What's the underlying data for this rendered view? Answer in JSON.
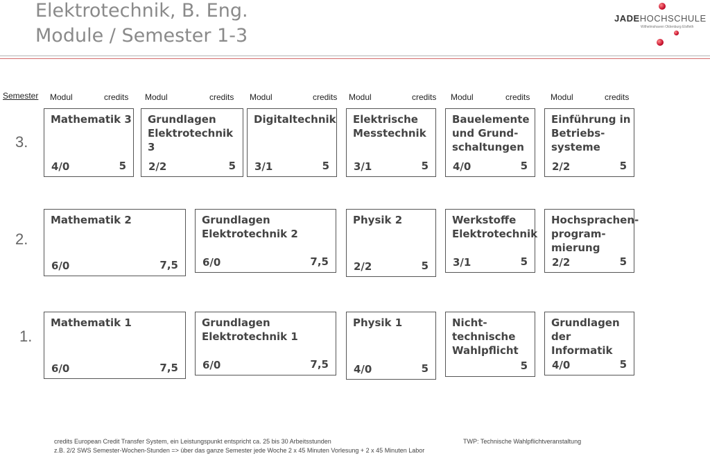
{
  "title_line1": "Elektrotechnik, B. Eng.",
  "title_line2": "Module / Semester 1-3",
  "logo": {
    "jade": "JADE",
    "hochschule": "HOCHSCHULE",
    "sub": "Wilhelmshaven Oldenburg Elsfleth"
  },
  "semester_header": "Semester",
  "col_headers": {
    "modul": "Modul",
    "credits": "credits"
  },
  "semesters": [
    {
      "label": "3.",
      "modules": [
        {
          "name": "Mathematik 3",
          "sws": "4/0",
          "credits": "5"
        },
        {
          "name": "Grundlagen\nElektrotechnik 3",
          "sws": "2/2",
          "credits": "5"
        },
        {
          "name": "Digitaltechnik",
          "sws": "3/1",
          "credits": "5"
        },
        {
          "name": "Elektrische\nMesstechnik",
          "sws": "3/1",
          "credits": "5"
        },
        {
          "name": "Bauelemente\nund Grund-\nschaltungen",
          "sws": "4/0",
          "credits": "5"
        },
        {
          "name": "Einführung in\nBetriebs-\nsysteme",
          "sws": "2/2",
          "credits": "5"
        }
      ]
    },
    {
      "label": "2.",
      "modules": [
        {
          "name": "Mathematik 2",
          "sws": "6/0",
          "credits": "7,5"
        },
        {
          "name": "Grundlagen\nElektrotechnik 2",
          "sws": "6/0",
          "credits": "7,5"
        },
        {
          "name": "Physik 2",
          "sws": "2/2",
          "credits": "5"
        },
        {
          "name": "Werkstoffe\nElektrotechnik",
          "sws": "3/1",
          "credits": "5"
        },
        {
          "name": "Hochsprachen-\nprogram-\nmierung",
          "sws": "2/2",
          "credits": "5"
        }
      ]
    },
    {
      "label": "1.",
      "modules": [
        {
          "name": "Mathematik 1",
          "sws": "6/0",
          "credits": "7,5"
        },
        {
          "name": "Grundlagen\nElektrotechnik 1",
          "sws": "6/0",
          "credits": "7,5"
        },
        {
          "name": "Physik 1",
          "sws": "4/0",
          "credits": "5"
        },
        {
          "name": "Nicht-\ntechnische\nWahlpflicht",
          "sws": "",
          "credits": "5"
        },
        {
          "name": "Grundlagen\nder\nInformatik",
          "sws": "4/0",
          "credits": "5"
        }
      ]
    }
  ],
  "footnote1": "credits European Credit Transfer System, ein Leistungspunkt entspricht ca. 25 bis 30 Arbeitsstunden",
  "footnote_twp": "TWP: Technische Wahlpflichtveranstaltung",
  "footnote2": "z.B.  2/2 SWS Semester-Wochen-Stunden => über das ganze Semester jede Woche 2 x 45 Minuten Vorlesung + 2 x 45 Minuten Labor"
}
